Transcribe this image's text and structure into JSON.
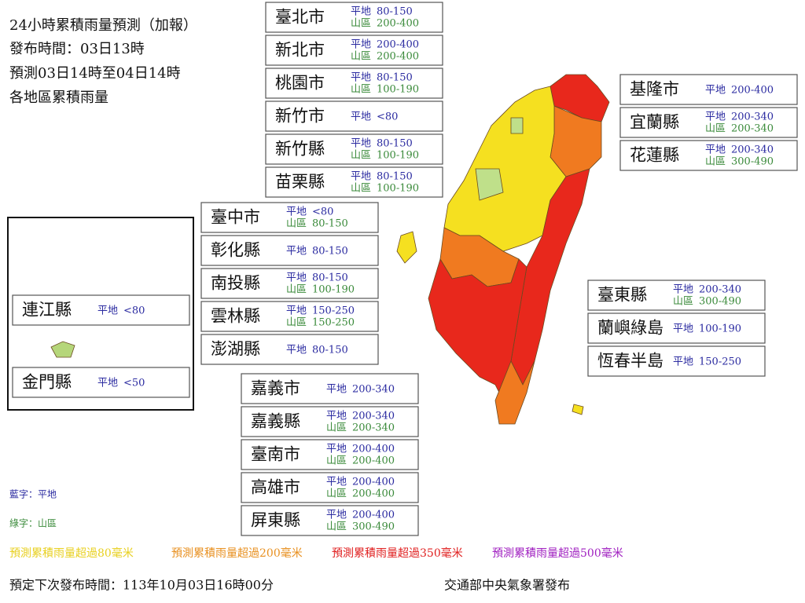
{
  "header": [
    "24小時累積雨量預測（加報）",
    "發布時間：03日13時",
    "預測03日14時至04日14時",
    "各地區累積雨量"
  ],
  "labels": {
    "plain": "平地",
    "mountain": "山區"
  },
  "regions": [
    {
      "name": "臺北市",
      "plain": "80-150",
      "mountain": "200-400"
    },
    {
      "name": "新北市",
      "plain": "200-400",
      "mountain": "200-400"
    },
    {
      "name": "桃園市",
      "plain": "80-150",
      "mountain": "100-190"
    },
    {
      "name": "新竹市",
      "plain": "<80"
    },
    {
      "name": "新竹縣",
      "plain": "80-150",
      "mountain": "100-190"
    },
    {
      "name": "苗栗縣",
      "plain": "80-150",
      "mountain": "100-190"
    },
    {
      "name": "臺中市",
      "plain": "<80",
      "mountain": "80-150"
    },
    {
      "name": "彰化縣",
      "plain": "80-150"
    },
    {
      "name": "南投縣",
      "plain": "80-150",
      "mountain": "100-190"
    },
    {
      "name": "雲林縣",
      "plain": "150-250",
      "mountain": "150-250"
    },
    {
      "name": "澎湖縣",
      "plain": "80-150"
    },
    {
      "name": "嘉義市",
      "plain": "200-340"
    },
    {
      "name": "嘉義縣",
      "plain": "200-340",
      "mountain": "200-340"
    },
    {
      "name": "臺南市",
      "plain": "200-400",
      "mountain": "200-400"
    },
    {
      "name": "高雄市",
      "plain": "200-400",
      "mountain": "200-400"
    },
    {
      "name": "屏東縣",
      "plain": "200-400",
      "mountain": "300-490"
    },
    {
      "name": "基隆市",
      "plain": "200-400"
    },
    {
      "name": "宜蘭縣",
      "plain": "200-340",
      "mountain": "200-340"
    },
    {
      "name": "花蓮縣",
      "plain": "200-340",
      "mountain": "300-490"
    },
    {
      "name": "臺東縣",
      "plain": "200-340",
      "mountain": "300-490"
    },
    {
      "name": "蘭嶼綠島",
      "plain": "100-190"
    },
    {
      "name": "恆春半島",
      "plain": "150-250"
    },
    {
      "name": "連江縣",
      "plain": "<80"
    },
    {
      "name": "金門縣",
      "plain": "<50"
    }
  ],
  "legend": {
    "plain": "藍字：平地",
    "mountain": "綠字：山區"
  },
  "rain_levels": [
    {
      "text": "預測累積雨量超過80毫米",
      "color": "#e8d020"
    },
    {
      "text": "預測累積雨量超過200毫米",
      "color": "#e89020"
    },
    {
      "text": "預測累積雨量超過350毫米",
      "color": "#e02020"
    },
    {
      "text": "預測累積雨量超過500毫米",
      "color": "#a020c0"
    }
  ],
  "footer": {
    "next": "預定下次發布時間：113年10月03日16時00分",
    "issuer": "交通部中央氣象署發布"
  }
}
